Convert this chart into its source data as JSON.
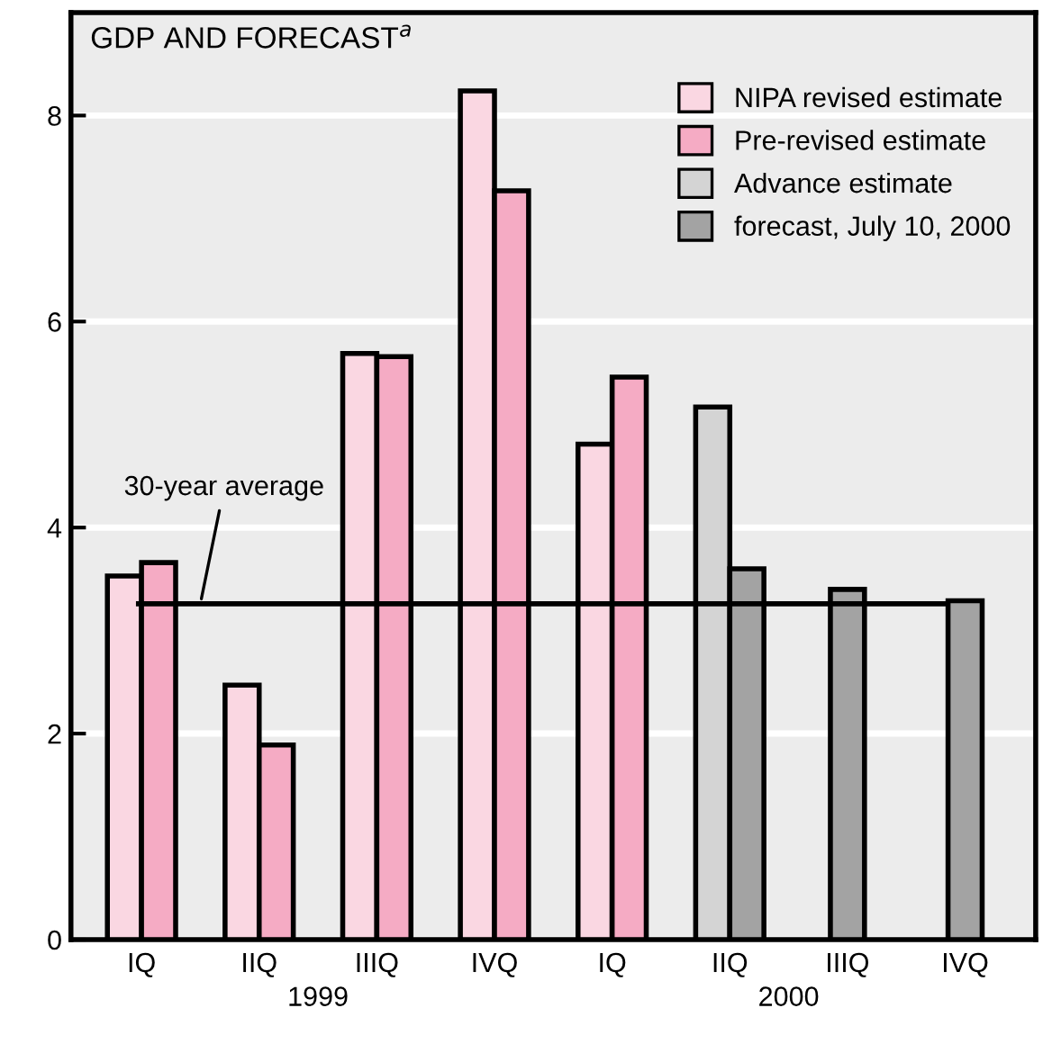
{
  "chart_data": {
    "type": "bar",
    "title": "GDP AND FORECAST$^{a}$",
    "categories": [
      "IQ",
      "IIQ",
      "IIIQ",
      "IVQ",
      "IQ",
      "IIQ",
      "IIIQ",
      "IVQ"
    ],
    "series": [
      {
        "name": "NIPA revised estimate",
        "color": "#fad7e2",
        "values": [
          3.53,
          2.47,
          5.69,
          8.24,
          4.81,
          null,
          null,
          null
        ]
      },
      {
        "name": "Pre-revised estimate",
        "color": "#f5abc4",
        "values": [
          3.66,
          1.89,
          5.66,
          7.27,
          5.46,
          null,
          null,
          null
        ]
      },
      {
        "name": "Advance estimate",
        "color": "#d4d4d4",
        "values": [
          null,
          null,
          null,
          null,
          null,
          5.17,
          null,
          null
        ]
      },
      {
        "name": "forecast, July 10, 2000",
        "color": "#a3a3a3",
        "values": [
          null,
          null,
          null,
          null,
          null,
          3.6,
          3.4,
          3.29
        ]
      }
    ],
    "ylim": [
      0,
      9
    ],
    "yticks": [
      0,
      2,
      4,
      6,
      8
    ],
    "grid": "y",
    "legend": "top right",
    "ref_lines": [
      {
        "axis": "y",
        "value": 3.26,
        "label": "30-year average",
        "color": "#000000"
      }
    ],
    "annotations": [
      "1999",
      "2000"
    ]
  }
}
